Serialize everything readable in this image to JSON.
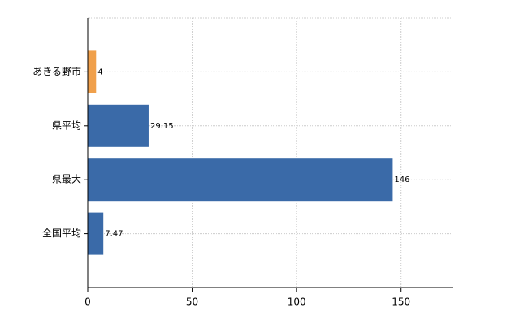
{
  "chart_data": {
    "type": "bar",
    "orientation": "horizontal",
    "categories": [
      "あきる野市",
      "県平均",
      "県最大",
      "全国平均"
    ],
    "series": [
      {
        "values": [
          4,
          29.15,
          146,
          7.47
        ],
        "colors": [
          "#f0a04b",
          "#3a6aa8",
          "#3a6aa8",
          "#3a6aa8"
        ]
      }
    ],
    "xlim": [
      0,
      175
    ],
    "xticks": [
      0,
      50,
      100,
      150
    ],
    "grid": true
  }
}
